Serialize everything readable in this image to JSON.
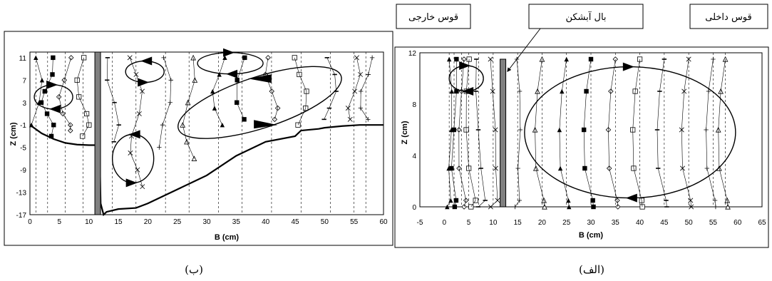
{
  "chart_data": [
    {
      "id": "b",
      "type": "line",
      "caption": "(ب)",
      "xlabel": "B (cm)",
      "ylabel": "Z (cm)",
      "xlim": [
        0,
        60
      ],
      "ylim": [
        -17,
        12
      ],
      "xticks": [
        0,
        5,
        10,
        15,
        20,
        25,
        30,
        35,
        40,
        45,
        50,
        55,
        60
      ],
      "yticks": [
        11,
        7,
        3,
        -1,
        -5,
        -9,
        -13,
        -17
      ],
      "wall_x": 11.5,
      "bed_profile": {
        "x": [
          0,
          2,
          4,
          6,
          8,
          10,
          11
        ],
        "y": [
          -1,
          -2.5,
          -3.5,
          -4.2,
          -4.5,
          -4.6,
          -4.6
        ]
      },
      "scour_profile": {
        "x": [
          11.8,
          12,
          12.5,
          13,
          15,
          18,
          20,
          25,
          30,
          35,
          40,
          45,
          46,
          49,
          50,
          53,
          56,
          60
        ],
        "y": [
          -5,
          -15,
          -17,
          -16.5,
          -16,
          -15.8,
          -15,
          -12.5,
          -10,
          -6.5,
          -4,
          -3,
          -2,
          -1.7,
          -1.5,
          -1.2,
          -1,
          -1
        ]
      },
      "sections_x": [
        1,
        3,
        6,
        9,
        14,
        18,
        23,
        27,
        32,
        36,
        41,
        46,
        51,
        55,
        57
      ],
      "circles": [
        "counterclockwise",
        "clockwise",
        "counterclockwise",
        "clockwise",
        "clockwise"
      ]
    },
    {
      "id": "alef",
      "type": "line",
      "caption": "(الف)",
      "xlabel": "B (cm)",
      "ylabel": "Z (cm)",
      "xlim": [
        -5,
        65
      ],
      "ylim": [
        0,
        12
      ],
      "xticks": [
        -5,
        0,
        5,
        10,
        15,
        20,
        25,
        30,
        35,
        40,
        45,
        50,
        55,
        60,
        65
      ],
      "yticks": [
        0,
        4,
        8,
        12
      ],
      "wall_x": 12,
      "sections_x": [
        1,
        2,
        3.5,
        5,
        7,
        10,
        15,
        20,
        25,
        30,
        35,
        40,
        45,
        50,
        55,
        57.5
      ],
      "labels": {
        "inner_arc": "قوس داخلی",
        "vane": "بال آبشکن",
        "outer_arc": "قوس خارجی"
      }
    }
  ],
  "colors": {
    "line": "#000000",
    "wall": "#808080",
    "grid": "#000000"
  }
}
